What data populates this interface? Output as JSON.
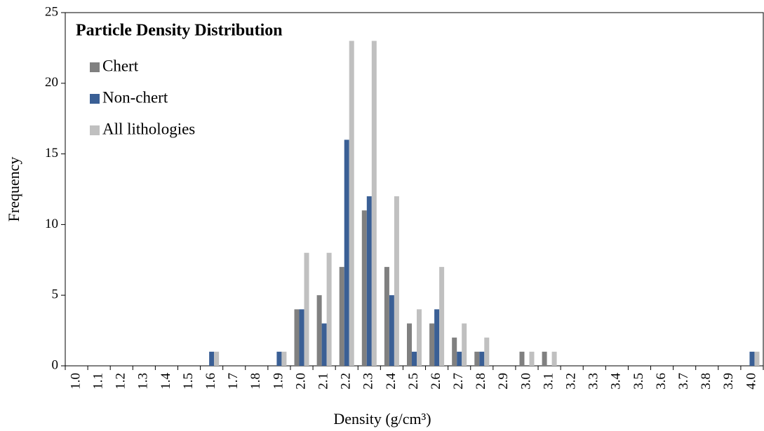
{
  "chart_data": {
    "type": "bar",
    "title": "Particle Density Distribution",
    "x_label": "Density (g/cm³)",
    "y_label": "Frequency",
    "categories": [
      "1.0",
      "1.1",
      "1.2",
      "1.3",
      "1.4",
      "1.5",
      "1.6",
      "1.7",
      "1.8",
      "1.9",
      "2.0",
      "2.1",
      "2.2",
      "2.3",
      "2.4",
      "2.5",
      "2.6",
      "2.7",
      "2.8",
      "2.9",
      "3.0",
      "3.1",
      "3.2",
      "3.3",
      "3.4",
      "3.5",
      "3.6",
      "3.7",
      "3.8",
      "3.9",
      "4.0"
    ],
    "series": [
      {
        "name": "Chert",
        "color": "#808080",
        "values": [
          0,
          0,
          0,
          0,
          0,
          0,
          0,
          0,
          0,
          0,
          4,
          5,
          7,
          11,
          7,
          3,
          3,
          2,
          1,
          0,
          1,
          1,
          0,
          0,
          0,
          0,
          0,
          0,
          0,
          0,
          0
        ]
      },
      {
        "name": "Non-chert",
        "color": "#3a5f95",
        "values": [
          0,
          0,
          0,
          0,
          0,
          0,
          1,
          0,
          0,
          1,
          4,
          3,
          16,
          12,
          5,
          1,
          4,
          1,
          1,
          0,
          0,
          0,
          0,
          0,
          0,
          0,
          0,
          0,
          0,
          0,
          1
        ]
      },
      {
        "name": "All lithologies",
        "color": "#c0c0c0",
        "values": [
          0,
          0,
          0,
          0,
          0,
          0,
          1,
          0,
          0,
          1,
          8,
          8,
          23,
          23,
          12,
          4,
          7,
          3,
          2,
          0,
          1,
          1,
          0,
          0,
          0,
          0,
          0,
          0,
          0,
          0,
          1
        ]
      }
    ],
    "ylim": [
      0,
      25
    ],
    "yticks": [
      0,
      5,
      10,
      15,
      20,
      25
    ],
    "legend": "top-left"
  }
}
